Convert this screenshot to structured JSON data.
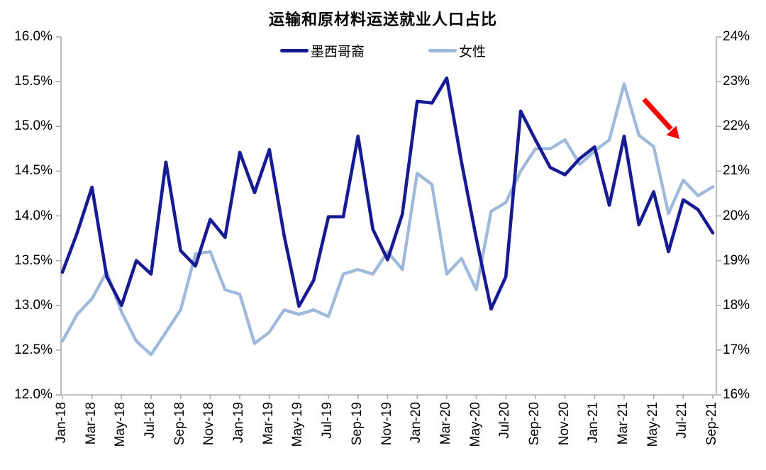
{
  "title": "运输和原材料运送就业人口占比",
  "chart_data": {
    "type": "line",
    "title": "运输和原材料运送就业人口占比",
    "categories": [
      "Jan-18",
      "Feb-18",
      "Mar-18",
      "Apr-18",
      "May-18",
      "Jun-18",
      "Jul-18",
      "Aug-18",
      "Sep-18",
      "Oct-18",
      "Nov-18",
      "Dec-18",
      "Jan-19",
      "Feb-19",
      "Mar-19",
      "Apr-19",
      "May-19",
      "Jun-19",
      "Jul-19",
      "Aug-19",
      "Sep-19",
      "Oct-19",
      "Nov-19",
      "Dec-19",
      "Jan-20",
      "Feb-20",
      "Mar-20",
      "Apr-20",
      "May-20",
      "Jun-20",
      "Jul-20",
      "Aug-20",
      "Sep-20",
      "Oct-20",
      "Nov-20",
      "Dec-20",
      "Jan-21",
      "Feb-21",
      "Mar-21",
      "Apr-21",
      "May-21",
      "Jun-21",
      "Jul-21",
      "Aug-21",
      "Sep-21"
    ],
    "x_tick_label_every": 2,
    "series": [
      {
        "name": "墨西哥裔",
        "axis": "left",
        "color": "#161B93",
        "values": [
          13.37,
          13.81,
          14.32,
          13.32,
          13.0,
          13.5,
          13.35,
          14.6,
          13.61,
          13.44,
          13.96,
          13.76,
          14.71,
          14.26,
          14.74,
          13.78,
          12.99,
          13.28,
          13.99,
          13.99,
          14.89,
          13.85,
          13.51,
          14.02,
          15.28,
          15.26,
          15.54,
          14.6,
          13.75,
          12.96,
          13.32,
          15.17,
          14.85,
          14.54,
          14.46,
          14.64,
          14.77,
          14.12,
          14.89,
          13.9,
          14.27,
          13.6,
          14.18,
          14.07,
          13.81
        ]
      },
      {
        "name": "女性",
        "axis": "right",
        "color": "#9EB9DC",
        "values": [
          17.2,
          17.8,
          18.15,
          18.75,
          17.85,
          17.2,
          16.9,
          17.4,
          17.9,
          19.15,
          19.2,
          18.35,
          18.25,
          17.15,
          17.4,
          17.9,
          17.8,
          17.9,
          17.75,
          18.7,
          18.8,
          18.7,
          19.2,
          18.8,
          20.95,
          20.7,
          18.7,
          19.05,
          18.35,
          20.1,
          20.3,
          21.0,
          21.5,
          21.5,
          21.7,
          21.15,
          21.45,
          21.7,
          22.95,
          21.8,
          21.55,
          20.05,
          20.8,
          20.45,
          20.65
        ]
      }
    ],
    "left_axis": {
      "min": 12.0,
      "max": 16.0,
      "step": 0.5,
      "tick_labels": [
        "12.0%",
        "12.5%",
        "13.0%",
        "13.5%",
        "14.0%",
        "14.5%",
        "15.0%",
        "15.5%",
        "16.0%"
      ]
    },
    "right_axis": {
      "min": 16,
      "max": 24,
      "step": 1,
      "tick_labels": [
        "16%",
        "17%",
        "18%",
        "19%",
        "20%",
        "21%",
        "22%",
        "23%",
        "24%"
      ]
    },
    "grid": "off",
    "legend_position": "top",
    "annotation": {
      "type": "arrow",
      "direction": "down-right",
      "color": "#FF0000",
      "near": "女性 series decline after Mar-21 peak"
    },
    "axis_color": "#ABABAB"
  }
}
